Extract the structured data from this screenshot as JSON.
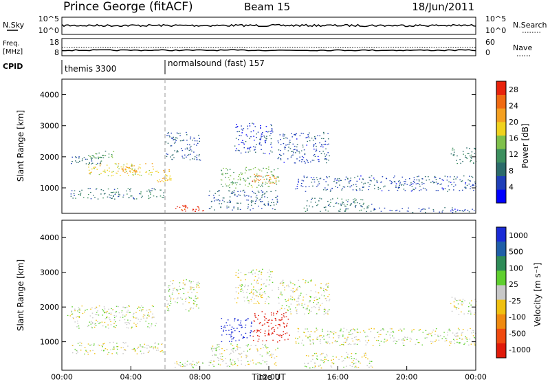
{
  "header": {
    "station": "Prince George (fitACF)",
    "beam": "Beam 15",
    "date": "18/Jun/2011"
  },
  "top_panels": {
    "nsky": {
      "label": "N.Sky",
      "left_ticks": [
        "10^5",
        "10^0"
      ],
      "right_label": "N.Search",
      "right_ticks": [
        "10^5",
        "10^0"
      ]
    },
    "freq": {
      "label_line1": "Freq.",
      "label_line2": "[MHz]",
      "left_ticks": [
        "18",
        "8"
      ],
      "right_label": "Nave",
      "right_ticks": [
        "60",
        "0"
      ]
    },
    "cpid": {
      "label": "CPID",
      "segments": [
        {
          "label": "themis 3300",
          "start_h": 0.0
        },
        {
          "label": "normalsound (fast) 157",
          "start_h": 6.0
        }
      ]
    }
  },
  "colors": {
    "power_scale": [
      "#0000ff",
      "#1f3fb8",
      "#2b6b6a",
      "#3c8f5e",
      "#7fc04b",
      "#f0d21e",
      "#f4a021",
      "#f06a12",
      "#e8230c"
    ],
    "velocity_scale": [
      "#1a2bd6",
      "#1f5fa8",
      "#2e8b57",
      "#5fcf2f",
      "#c8c8c8",
      "#f0c010",
      "#f08a10",
      "#f04a10",
      "#e01a0a"
    ]
  },
  "chart_data": [
    {
      "type": "heatmap",
      "title": "Power",
      "ylabel": "Slant Range [km]",
      "xlabel": "Time UT",
      "x_tick_labels": [
        "00:00",
        "04:00",
        "08:00",
        "12:00",
        "16:00",
        "20:00",
        "00:00"
      ],
      "x_range_hours": [
        0,
        24
      ],
      "y_ticks": [
        1000,
        2000,
        3000,
        4000
      ],
      "ylim": [
        180,
        4500
      ],
      "colorbar": {
        "label": "Power [dB]",
        "ticks": [
          4,
          8,
          12,
          16,
          20,
          24,
          28
        ],
        "range": [
          0,
          30
        ]
      },
      "regions": [
        {
          "t": [
            0.3,
            2.5
          ],
          "r": [
            1750,
            2050
          ],
          "value": 8
        },
        {
          "t": [
            1.5,
            5.5
          ],
          "r": [
            1400,
            1800
          ],
          "value": 18
        },
        {
          "t": [
            3.5,
            4.5
          ],
          "r": [
            1500,
            1700
          ],
          "value": 22
        },
        {
          "t": [
            0.5,
            6.0
          ],
          "r": [
            650,
            1000
          ],
          "value": 9
        },
        {
          "t": [
            1.5,
            3.0
          ],
          "r": [
            1950,
            2200
          ],
          "value": 12
        },
        {
          "t": [
            6.0,
            8.0
          ],
          "r": [
            1900,
            2800
          ],
          "value": 7
        },
        {
          "t": [
            6.5,
            8.2
          ],
          "r": [
            250,
            450
          ],
          "value": 28
        },
        {
          "t": [
            5.5,
            6.3
          ],
          "r": [
            1200,
            1600
          ],
          "value": 20
        },
        {
          "t": [
            9.2,
            12.6
          ],
          "r": [
            1000,
            1700
          ],
          "value": 14
        },
        {
          "t": [
            11.0,
            12.4
          ],
          "r": [
            1150,
            1450
          ],
          "value": 24
        },
        {
          "t": [
            8.5,
            12.5
          ],
          "r": [
            300,
            950
          ],
          "value": 7
        },
        {
          "t": [
            10.0,
            12.2
          ],
          "r": [
            2100,
            3100
          ],
          "value": 5
        },
        {
          "t": [
            12.5,
            15.5
          ],
          "r": [
            1800,
            2800
          ],
          "value": 6
        },
        {
          "t": [
            13.5,
            24.0
          ],
          "r": [
            900,
            1400
          ],
          "value": 6
        },
        {
          "t": [
            14.0,
            18.0
          ],
          "r": [
            250,
            700
          ],
          "value": 9
        },
        {
          "t": [
            22.5,
            24.0
          ],
          "r": [
            1800,
            2300
          ],
          "value": 10
        },
        {
          "t": [
            18.0,
            24.0
          ],
          "r": [
            220,
            380
          ],
          "value": 6
        }
      ]
    },
    {
      "type": "heatmap",
      "title": "Velocity",
      "ylabel": "Slant Range [km]",
      "xlabel": "Time UT",
      "x_tick_labels": [
        "00:00",
        "04:00",
        "08:00",
        "12:00",
        "16:00",
        "20:00",
        "00:00"
      ],
      "x_range_hours": [
        0,
        24
      ],
      "y_ticks": [
        1000,
        2000,
        3000,
        4000
      ],
      "ylim": [
        180,
        4500
      ],
      "colorbar": {
        "label": "Velocity [m s⁻¹]",
        "ticks": [
          "1000",
          "500",
          "100",
          "25",
          "-25",
          "-100",
          "-500",
          "-1000"
        ]
      },
      "regions": [
        {
          "t": [
            0.3,
            5.5
          ],
          "r": [
            1400,
            2050
          ],
          "value": 0
        },
        {
          "t": [
            0.5,
            6.0
          ],
          "r": [
            650,
            1000
          ],
          "value": 0
        },
        {
          "t": [
            6.0,
            8.0
          ],
          "r": [
            1900,
            2800
          ],
          "value": 0
        },
        {
          "t": [
            6.5,
            8.2
          ],
          "r": [
            250,
            450
          ],
          "value": 0
        },
        {
          "t": [
            9.2,
            11.0
          ],
          "r": [
            1000,
            1700
          ],
          "value": 200
        },
        {
          "t": [
            11.0,
            13.2
          ],
          "r": [
            1000,
            1900
          ],
          "value": -200
        },
        {
          "t": [
            8.5,
            12.5
          ],
          "r": [
            300,
            950
          ],
          "value": 0
        },
        {
          "t": [
            10.0,
            12.2
          ],
          "r": [
            2100,
            3100
          ],
          "value": 0
        },
        {
          "t": [
            12.5,
            15.5
          ],
          "r": [
            1800,
            2800
          ],
          "value": 0
        },
        {
          "t": [
            13.5,
            24.0
          ],
          "r": [
            900,
            1400
          ],
          "value": 0
        },
        {
          "t": [
            14.0,
            18.0
          ],
          "r": [
            250,
            700
          ],
          "value": 0
        },
        {
          "t": [
            22.5,
            24.0
          ],
          "r": [
            1800,
            2300
          ],
          "value": 0
        }
      ]
    }
  ]
}
